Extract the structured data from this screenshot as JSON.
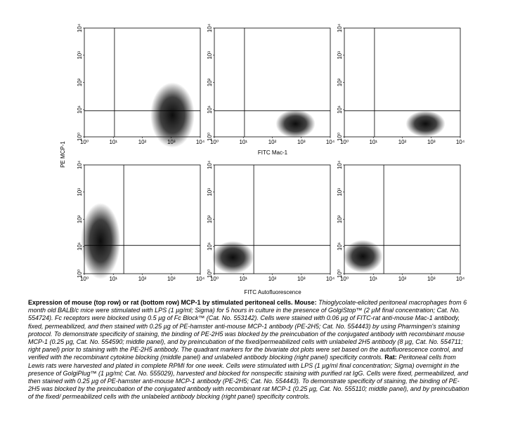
{
  "figure": {
    "tick_labels": [
      "10⁰",
      "10¹",
      "10²",
      "10³",
      "10⁴"
    ],
    "y_axis_label": "PE MCP-1",
    "top_x_axis_label": "FITC Mac-1",
    "bottom_x_axis_label": "FITC Autofluorescence"
  },
  "caption": {
    "title": "Expression of mouse (top row) or rat (bottom row) MCP-1 by stimulated peritoneal cells.",
    "mouse_label": "Mouse:",
    "mouse_text": "Thioglycolate-elicited peritoneal macrophages from 6 month old BALB/c mice were stimulated with LPS (1 µg/ml; Sigma) for 5 hours in culture in the presence of GolgiStop™ (2 µM final concentration; Cat. No. 554724). Fc receptors were blocked using 0.5 µg of Fc Block™ (Cat. No. 553142). Cells were stained with 0.06 µg of FITC-rat anti-mouse Mac-1 antibody, fixed, permeabilized, and then stained with 0.25 µg of PE-hamster anti-mouse MCP-1 antibody (PE-2H5; Cat. No. 554443) by using Pharmingen's staining protocol. To demonstrate specificity of staining, the binding of PE-2H5 was blocked by the preincubation of the conjugated antibody with recombinant mouse MCP-1 (0.25 µg, Cat. No. 554590; middle panel), and by preincubation of the fixed/permeabilized cells with unlabeled 2H5 antibody (8 µg, Cat. No. 554711; right panel) prior to staining with the PE-2H5 antibody. The quadrant markers for the bivariate dot plots were set based on the autofluorescence control, and verified with the recombinant cytokine blocking (middle panel) and unlabeled antibody blocking (right panel) specificity controls.",
    "rat_label": "Rat:",
    "rat_text": "Peritoneal cells from Lewis rats were harvested and plated in complete RPMI for one week. Cells were stimulated with LPS (1 µg/ml final concentration; Sigma) overnight in the presence of GolgiPlug™ (1 µg/ml; Cat. No. 555029), harvested and blocked for nonspecific staining with purified rat IgG. Cells were fixed, permeabilized, and then stained with 0.25 µg of PE-hamster anti-mouse MCP-1 antibody (PE-2H5; Cat. No. 554443). To demonstrate specificity of staining, the binding of PE-2H5 was blocked by the preincubation of the conjugated antibody with recombinant rat MCP-1 (0.25 µg, Cat. No. 555110; middle panel), and by preincubation of the fixed/ permeabilized cells with the unlabeled antibody blocking (right panel) specificity controls."
  }
}
